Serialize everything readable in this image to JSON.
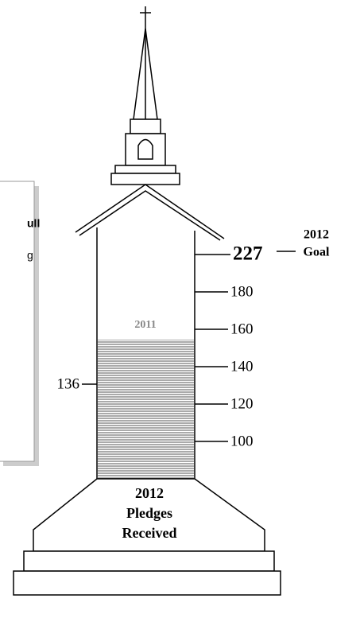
{
  "goal": {
    "value": "227",
    "label_lines": [
      "2012",
      "Goal"
    ]
  },
  "scale_labels": [
    "180",
    "160",
    "140",
    "120",
    "100"
  ],
  "current": "136",
  "previous_year": "2011",
  "base_lines": [
    "2012",
    "Pledges",
    "Received"
  ],
  "side_box_fragments": [
    "ull",
    "g"
  ]
}
